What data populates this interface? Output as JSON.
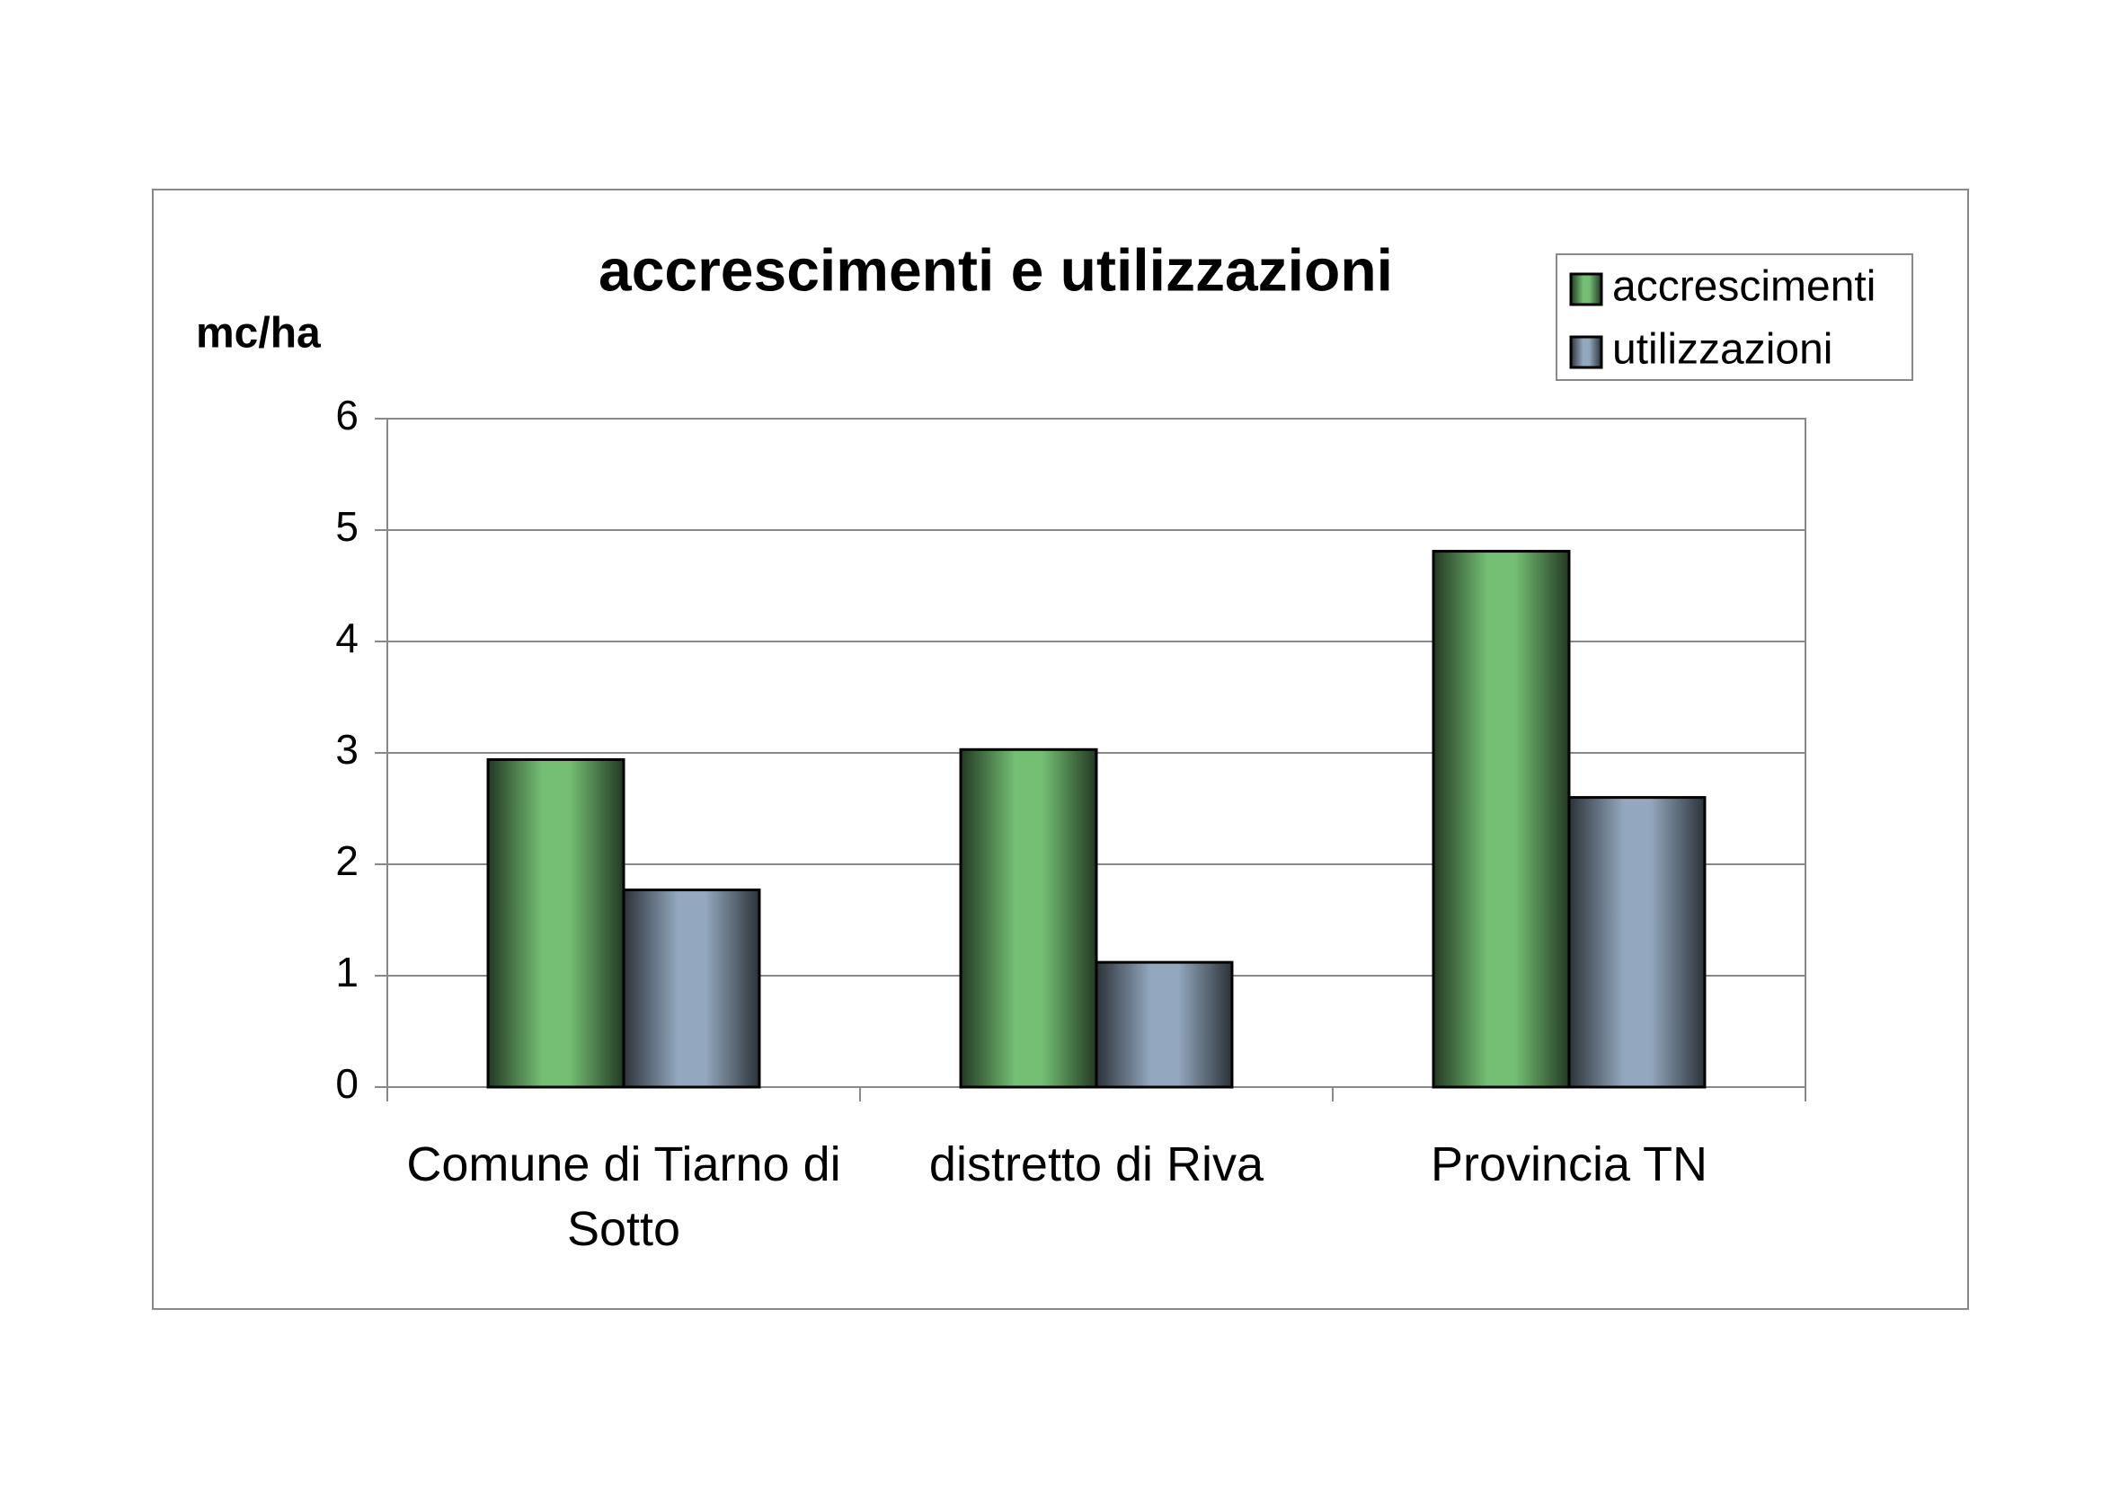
{
  "chart_data": {
    "type": "bar",
    "title": "accrescimenti e utilizzazioni",
    "y_label": "mc/ha",
    "categories": [
      "Comune di Tiarno di Sotto",
      "distretto di Riva",
      "Provincia TN"
    ],
    "series": [
      {
        "name": "accrescimenti",
        "color": "#74bf74",
        "values": [
          2.94,
          3.03,
          4.81
        ]
      },
      {
        "name": "utilizzazioni",
        "color": "#93a8be",
        "values": [
          1.77,
          1.12,
          2.6
        ]
      }
    ],
    "ylim": [
      0,
      6
    ],
    "yticks": [
      0,
      1,
      2,
      3,
      4,
      5,
      6
    ],
    "grid": true,
    "legend": "top-right"
  }
}
